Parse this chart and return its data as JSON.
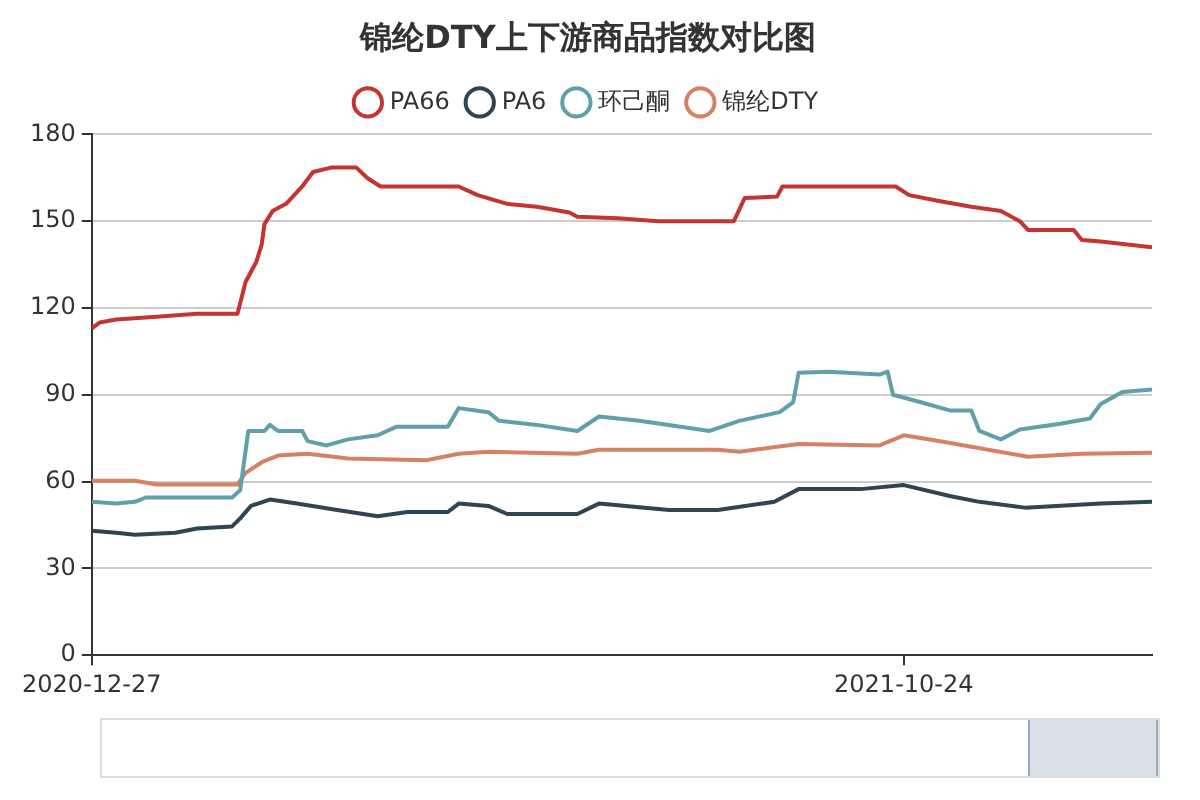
{
  "chart_data": {
    "type": "line",
    "title": "锦纶DTY上下游商品指数对比图",
    "xlim": [
      "2020-12-27",
      "2022-01-24"
    ],
    "xticks": [
      "2020-12-27",
      "2021-10-24"
    ],
    "ylim": [
      0,
      180
    ],
    "yticks": [
      0,
      30,
      60,
      90,
      120,
      150,
      180
    ],
    "grid": "y",
    "legend": "top",
    "marker": "none",
    "line_style": "solid",
    "series": [
      {
        "name": "PA66",
        "color": "#c23531",
        "x": [
          "2020-12-27",
          "2020-12-30",
          "2021-01-05",
          "2021-01-20",
          "2021-02-04",
          "2021-02-19",
          "2021-02-22",
          "2021-02-26",
          "2021-02-28",
          "2021-03-01",
          "2021-03-04",
          "2021-03-09",
          "2021-03-15",
          "2021-03-19",
          "2021-03-26",
          "2021-04-04",
          "2021-04-08",
          "2021-04-13",
          "2021-04-27",
          "2021-05-12",
          "2021-05-19",
          "2021-05-30",
          "2021-06-10",
          "2021-06-22",
          "2021-06-25",
          "2021-07-10",
          "2021-07-25",
          "2021-08-22",
          "2021-08-26",
          "2021-09-07",
          "2021-09-09",
          "2021-09-30",
          "2021-10-21",
          "2021-10-26",
          "2021-11-06",
          "2021-11-18",
          "2021-11-29",
          "2021-12-06",
          "2021-12-09",
          "2021-12-26",
          "2021-12-29",
          "2022-01-05",
          "2022-01-24"
        ],
        "values": [
          113,
          115,
          116,
          117,
          118,
          118,
          129,
          136,
          142,
          149,
          153.5,
          156,
          162,
          167,
          168.6,
          168.6,
          165,
          162,
          162,
          162,
          159,
          156,
          155,
          153,
          151.5,
          151,
          150,
          150,
          158,
          158.5,
          162,
          162,
          162,
          159,
          157,
          155,
          153.5,
          150,
          147,
          147,
          143.5,
          143,
          141
        ]
      },
      {
        "name": "PA6",
        "color": "#2f4554",
        "x": [
          "2020-12-27",
          "2021-01-05",
          "2021-01-12",
          "2021-01-27",
          "2021-02-04",
          "2021-02-17",
          "2021-02-20",
          "2021-02-24",
          "2021-03-03",
          "2021-03-13",
          "2021-03-28",
          "2021-04-12",
          "2021-04-23",
          "2021-05-08",
          "2021-05-12",
          "2021-05-23",
          "2021-05-30",
          "2021-06-25",
          "2021-07-03",
          "2021-07-29",
          "2021-08-16",
          "2021-09-06",
          "2021-09-15",
          "2021-10-08",
          "2021-10-24",
          "2021-11-10",
          "2021-11-21",
          "2021-12-08",
          "2022-01-05",
          "2022-01-24"
        ],
        "values": [
          43,
          42.3,
          41.6,
          42.3,
          43.8,
          44.5,
          47.3,
          51.6,
          53.8,
          52.4,
          50.2,
          48,
          49.5,
          49.5,
          52.4,
          51.6,
          48.8,
          48.8,
          52.4,
          50.2,
          50.2,
          53,
          57.4,
          57.4,
          58.8,
          55,
          53,
          51,
          52.4,
          53
        ]
      },
      {
        "name": "环己酮",
        "color": "#61a0a8",
        "x": [
          "2020-12-27",
          "2021-01-05",
          "2021-01-12",
          "2021-01-16",
          "2021-02-17",
          "2021-02-20",
          "2021-02-23",
          "2021-03-01",
          "2021-03-03",
          "2021-03-06",
          "2021-03-15",
          "2021-03-17",
          "2021-03-24",
          "2021-04-01",
          "2021-04-12",
          "2021-04-19",
          "2021-05-08",
          "2021-05-12",
          "2021-05-23",
          "2021-05-27",
          "2021-06-10",
          "2021-06-25",
          "2021-07-03",
          "2021-07-18",
          "2021-08-13",
          "2021-08-24",
          "2021-09-08",
          "2021-09-13",
          "2021-09-15",
          "2021-09-26",
          "2021-10-15",
          "2021-10-18",
          "2021-10-20",
          "2021-10-30",
          "2021-11-10",
          "2021-11-18",
          "2021-11-21",
          "2021-11-29",
          "2021-12-06",
          "2021-12-21",
          "2022-01-01",
          "2022-01-05",
          "2022-01-13",
          "2022-01-24"
        ],
        "values": [
          53,
          52.4,
          53,
          54.5,
          54.5,
          57,
          77.5,
          77.5,
          79.6,
          77.5,
          77.5,
          74,
          72.5,
          74.6,
          76,
          79,
          79,
          85.4,
          84,
          81,
          79.6,
          77.5,
          82.5,
          81,
          77.5,
          81,
          84,
          87.5,
          97.6,
          98,
          97,
          98,
          90,
          87.5,
          84.6,
          84.6,
          77.5,
          74.6,
          78,
          80,
          81.8,
          86.8,
          91,
          91.8
        ]
      },
      {
        "name": "锦纶DTY",
        "color": "#d48265",
        "x": [
          "2020-12-27",
          "2021-01-12",
          "2021-01-20",
          "2021-02-19",
          "2021-02-22",
          "2021-02-28",
          "2021-03-06",
          "2021-03-17",
          "2021-04-01",
          "2021-04-30",
          "2021-05-12",
          "2021-05-23",
          "2021-06-25",
          "2021-07-03",
          "2021-07-25",
          "2021-08-16",
          "2021-08-24",
          "2021-09-15",
          "2021-10-15",
          "2021-10-24",
          "2021-11-06",
          "2021-12-09",
          "2021-12-29",
          "2022-01-24"
        ],
        "values": [
          60.3,
          60.3,
          59,
          59,
          63,
          66.7,
          69,
          69.6,
          68,
          67.4,
          69.6,
          70.3,
          69.6,
          71,
          71,
          71,
          70.3,
          73,
          72.5,
          76,
          74,
          68.6,
          69.6,
          70
        ]
      }
    ]
  }
}
